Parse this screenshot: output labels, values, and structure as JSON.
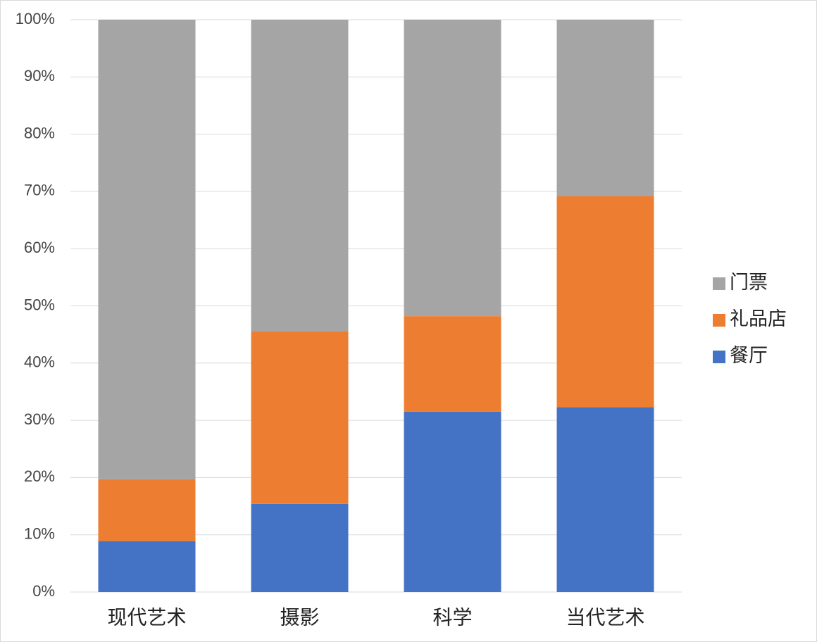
{
  "chart_data": {
    "type": "stacked_bar",
    "categories": [
      "现代艺术",
      "摄影",
      "科学",
      "当代艺术"
    ],
    "series": [
      {
        "name": "餐厅",
        "color": "#4472c4",
        "values": [
          8.9,
          15.4,
          31.5,
          32.3
        ]
      },
      {
        "name": "礼品店",
        "color": "#ed7d31",
        "values": [
          10.8,
          30.2,
          16.7,
          36.9
        ]
      },
      {
        "name": "门票",
        "color": "#a5a5a5",
        "values": [
          80.3,
          54.4,
          51.8,
          30.8
        ]
      }
    ],
    "ylim": [
      0,
      100
    ],
    "yticks": [
      {
        "value": 0,
        "label": "0%"
      },
      {
        "value": 10,
        "label": "10%"
      },
      {
        "value": 20,
        "label": "20%"
      },
      {
        "value": 30,
        "label": "30%"
      },
      {
        "value": 40,
        "label": "40%"
      },
      {
        "value": 50,
        "label": "50%"
      },
      {
        "value": 60,
        "label": "60%"
      },
      {
        "value": 70,
        "label": "70%"
      },
      {
        "value": 80,
        "label": "80%"
      },
      {
        "value": 90,
        "label": "90%"
      },
      {
        "value": 100,
        "label": "100%"
      }
    ],
    "grid": true,
    "legend": "right"
  }
}
